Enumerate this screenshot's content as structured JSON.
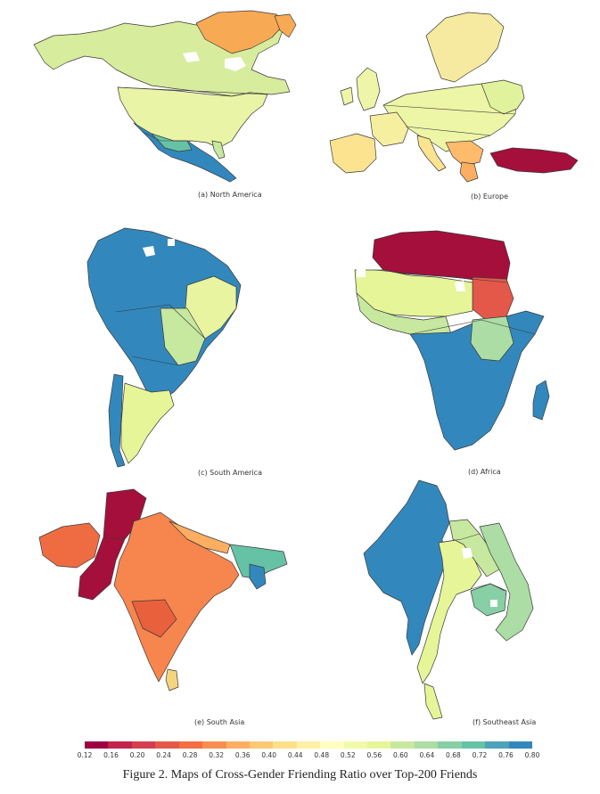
{
  "panels": [
    {
      "id": "a",
      "caption": "(a) North America"
    },
    {
      "id": "b",
      "caption": "(b) Europe"
    },
    {
      "id": "c",
      "caption": "(c) South America"
    },
    {
      "id": "d",
      "caption": "(d) Africa"
    },
    {
      "id": "e",
      "caption": "(e) South Asia"
    },
    {
      "id": "f",
      "caption": "(f) Southeast Asia"
    }
  ],
  "colorbar": {
    "ticks": [
      "0.12",
      "0.16",
      "0.20",
      "0.24",
      "0.28",
      "0.32",
      "0.36",
      "0.40",
      "0.44",
      "0.48",
      "0.52",
      "0.56",
      "0.60",
      "0.64",
      "0.68",
      "0.72",
      "0.76",
      "0.80"
    ],
    "colors": [
      "#9e0142",
      "#c2244b",
      "#d53e4f",
      "#e4584a",
      "#f46d43",
      "#f88d52",
      "#fdae61",
      "#fdc776",
      "#fee08b",
      "#fff0a8",
      "#ffffbf",
      "#f1f9aa",
      "#e6f598",
      "#c7e89f",
      "#abdda4",
      "#87cfa4",
      "#66c2a5",
      "#4ea1b8",
      "#3288bd"
    ]
  },
  "figure_caption": "Figure 2. Maps of Cross-Gender Friending Ratio over Top-200 Friends"
}
